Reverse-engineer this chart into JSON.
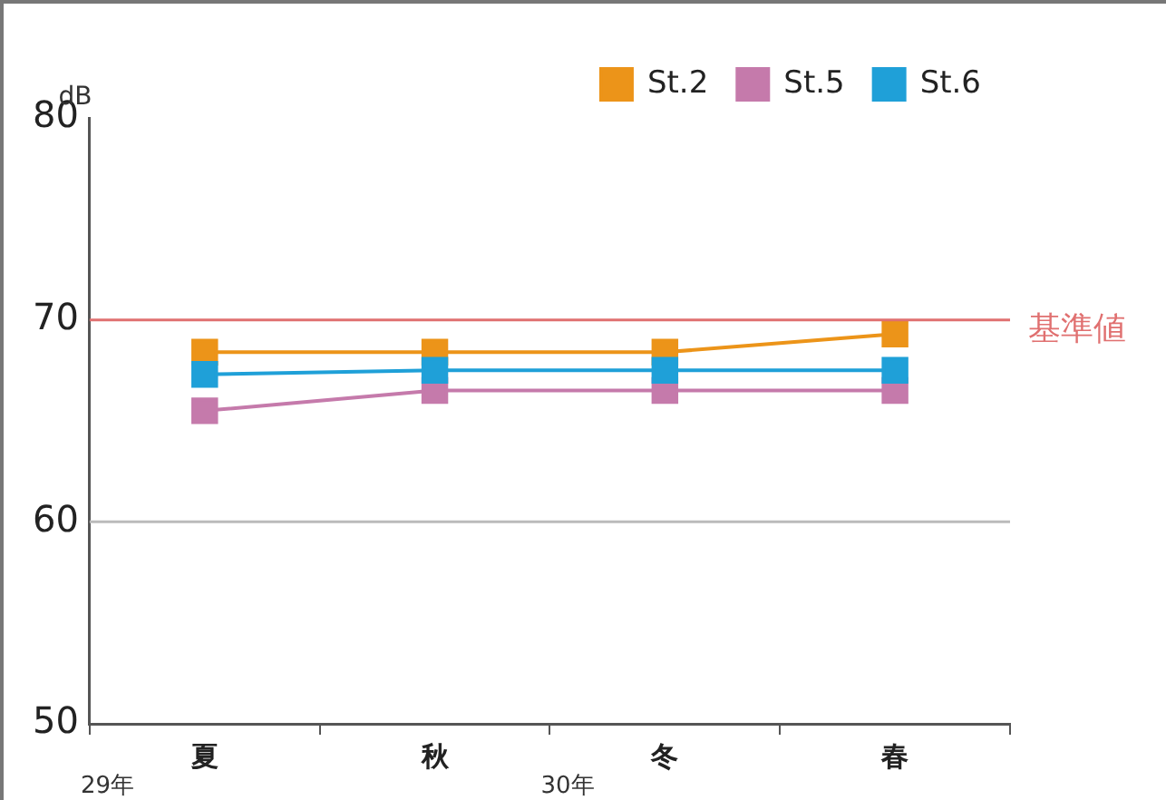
{
  "chart_data": {
    "type": "line",
    "ylabel": "dB",
    "categories": [
      "夏",
      "秋",
      "冬",
      "春"
    ],
    "series": [
      {
        "name": "St.2",
        "color": "#ec9419",
        "values": [
          68.4,
          68.4,
          68.4,
          69.3
        ]
      },
      {
        "name": "St.5",
        "color": "#c57aab",
        "values": [
          65.5,
          66.5,
          66.5,
          66.5
        ]
      },
      {
        "name": "St.6",
        "color": "#1fa0d8",
        "values": [
          67.3,
          67.5,
          67.5,
          67.5
        ]
      }
    ],
    "ylim": [
      50,
      80
    ],
    "yticks": [
      50,
      60,
      70,
      80
    ],
    "legend": "top right",
    "marker": "square",
    "line_style": "solid",
    "ref_lines": [
      {
        "axis": "y",
        "value": 70,
        "label": "基準値",
        "color": "#e07070"
      },
      {
        "axis": "y",
        "value": 60,
        "color": "#bbbbbb"
      }
    ],
    "annotations": [
      "29年",
      "30年"
    ]
  }
}
